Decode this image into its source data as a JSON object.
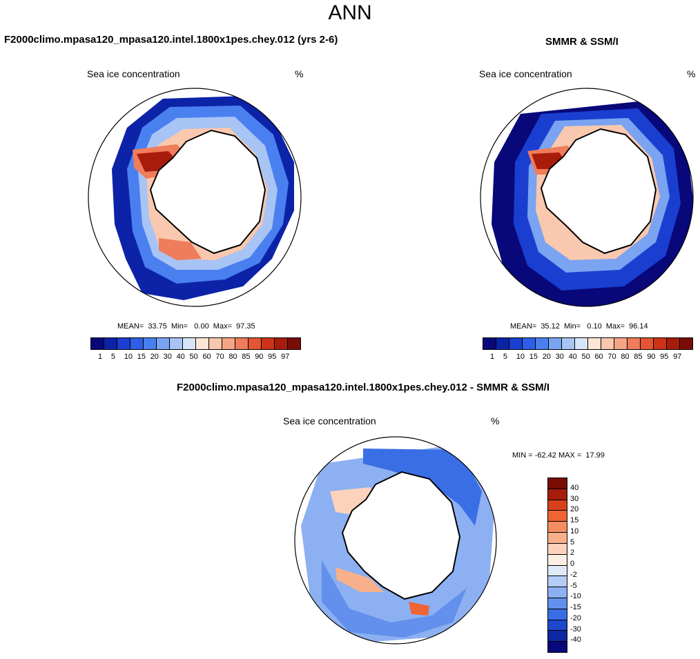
{
  "page": {
    "season": "ANN",
    "model_label": "F2000climo.mpasa120_mpasa120.intel.1800x1pes.chey.012 (yrs 2-6)",
    "obs_label": "SMMR & SSM/I",
    "diff_label": "F2000climo.mpasa120_mpasa120.intel.1800x1pes.chey.012 - SMMR & SSM/I"
  },
  "panels": {
    "model": {
      "variable": "Sea ice concentration",
      "units": "%",
      "stats": "MEAN=  33.75  Min=   0.00  Max=  97.35"
    },
    "obs": {
      "variable": "Sea ice concentration",
      "units": "%",
      "stats": "MEAN=  35.12  Min=   0.10  Max=  96.14"
    },
    "diff": {
      "variable": "Sea ice concentration",
      "units": "%",
      "stats": "MIN = -62.42 MAX =  17.99"
    }
  },
  "colorbar_abs": {
    "labels": [
      "1",
      "5",
      "10",
      "15",
      "20",
      "30",
      "40",
      "50",
      "60",
      "70",
      "80",
      "85",
      "90",
      "95",
      "97"
    ],
    "colors": [
      "#08087a",
      "#0c23a8",
      "#1a3fd0",
      "#2e5ee8",
      "#4a7ff0",
      "#7aa3f2",
      "#a8c4f4",
      "#d6e6f8",
      "#fde6d6",
      "#f9c8ae",
      "#f5a485",
      "#ef7c5a",
      "#e65533",
      "#cc3318",
      "#a81c0c",
      "#7a0c06"
    ]
  },
  "colorbar_diff": {
    "labels": [
      "40",
      "30",
      "20",
      "15",
      "10",
      "5",
      "2",
      "0",
      "-2",
      "-5",
      "-10",
      "-15",
      "-20",
      "-30",
      "-40"
    ],
    "colors": [
      "#7a0c06",
      "#a81c0c",
      "#d8401c",
      "#f06434",
      "#f58e62",
      "#f8b08a",
      "#fbd2bc",
      "#fdeee4",
      "#deeafa",
      "#b4cdf6",
      "#8cb0f2",
      "#6290ec",
      "#3a6ee4",
      "#1c48cc",
      "#0c28a0",
      "#08087a"
    ]
  }
}
